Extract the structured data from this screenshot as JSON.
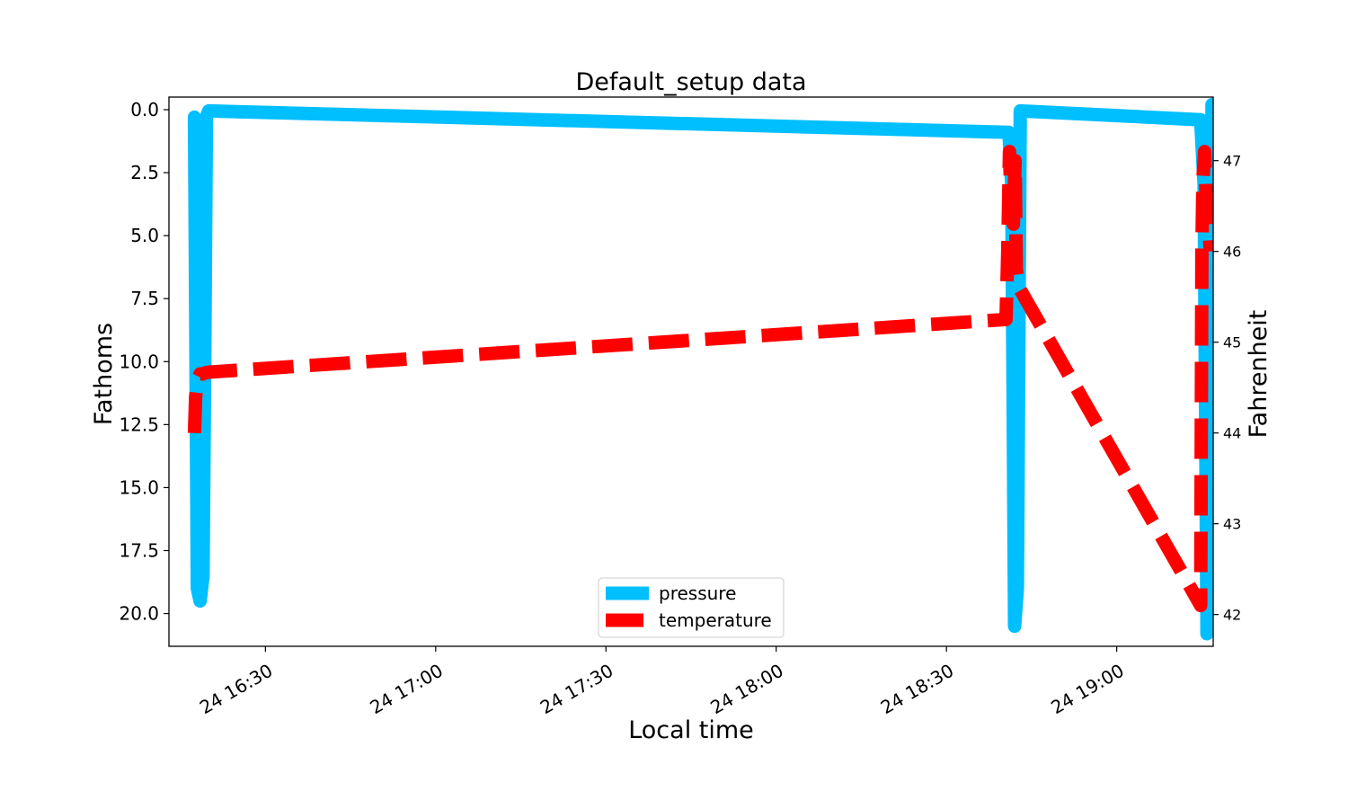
{
  "chart_data": {
    "type": "line",
    "title": "Default_setup data",
    "xlabel": "Local time",
    "ylabel_left": "Fathoms",
    "ylabel_right": "Fahrenheit",
    "x_ticks": [
      "24 16:30",
      "24 17:00",
      "24 17:30",
      "24 18:00",
      "24 18:30",
      "24 19:00"
    ],
    "x_tick_minutes": [
      990,
      1020,
      1050,
      1080,
      1110,
      1140
    ],
    "xlim_minutes": [
      973,
      1157
    ],
    "left_axis": {
      "inverted": true,
      "ylim": [
        21.3,
        -0.5
      ],
      "ticks": [
        "0.0",
        "2.5",
        "5.0",
        "7.5",
        "10.0",
        "12.5",
        "15.0",
        "17.5",
        "20.0"
      ],
      "tick_values": [
        0,
        2.5,
        5,
        7.5,
        10,
        12.5,
        15,
        17.5,
        20
      ]
    },
    "right_axis": {
      "ylim": [
        41.65,
        47.7
      ],
      "ticks": [
        "42",
        "43",
        "44",
        "45",
        "46",
        "47"
      ],
      "tick_values": [
        42,
        43,
        44,
        45,
        46,
        47
      ]
    },
    "legend": {
      "position": "lower center",
      "entries": [
        "pressure",
        "temperature"
      ]
    },
    "series": [
      {
        "name": "pressure",
        "axis": "left",
        "color": "#00bfff",
        "style": "solid",
        "x_minutes": [
          977.5,
          978.0,
          978.5,
          979.0,
          979.3,
          979.6,
          980.0,
          1121.0,
          1121.5,
          1122.0,
          1122.5,
          1123.0,
          1154.8,
          1155.4,
          1155.9,
          1156.4,
          1156.8
        ],
        "values": [
          0.3,
          19.0,
          19.5,
          18.5,
          10.0,
          0.3,
          0.05,
          0.9,
          3.0,
          20.5,
          19.0,
          0.05,
          0.4,
          3.0,
          20.8,
          18.0,
          -0.2
        ]
      },
      {
        "name": "temperature",
        "axis": "right",
        "color": "#ff0000",
        "style": "dashed",
        "x_minutes": [
          977.5,
          977.7,
          978.1,
          978.5,
          979.0,
          979.3,
          980.0,
          1120.5,
          1120.8,
          1121.1,
          1121.4,
          1121.8,
          1122.1,
          1122.3,
          1122.8,
          1154.8,
          1155.0,
          1155.2,
          1155.5,
          1155.8,
          1156.2,
          1156.5
        ],
        "values": [
          44.0,
          44.4,
          44.6,
          44.65,
          44.65,
          44.66,
          44.67,
          45.25,
          46.0,
          47.1,
          46.5,
          46.3,
          47.0,
          45.8,
          45.6,
          42.1,
          46.0,
          46.8,
          47.1,
          46.5,
          46.3,
          46.0
        ]
      }
    ]
  }
}
